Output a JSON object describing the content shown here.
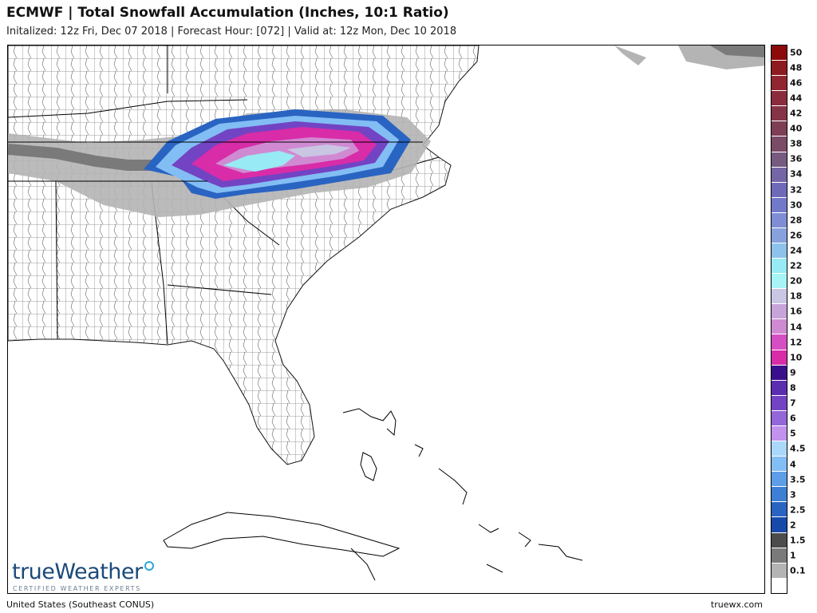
{
  "header": {
    "title": "ECMWF | Total Snowfall Accumulation (Inches, 10:1 Ratio)",
    "subtitle": "Initalized: 12z Fri, Dec 07 2018  |  Forecast Hour: [072]  |  Valid at: 12z Mon, Dec 10 2018"
  },
  "footer": {
    "region": "United States (Southeast CONUS)",
    "site": "truewx.com"
  },
  "logo": {
    "word1": "true",
    "word2": "Weather",
    "tagline": "CERTIFIED WEATHER EXPERTS"
  },
  "legend": {
    "levels": [
      {
        "label": "50",
        "color": "#8b0a0a"
      },
      {
        "label": "48",
        "color": "#8e1b1f"
      },
      {
        "label": "46",
        "color": "#922630"
      },
      {
        "label": "44",
        "color": "#8a2c3c"
      },
      {
        "label": "42",
        "color": "#853447"
      },
      {
        "label": "40",
        "color": "#7e3e55"
      },
      {
        "label": "38",
        "color": "#7a4a66"
      },
      {
        "label": "36",
        "color": "#775a80"
      },
      {
        "label": "34",
        "color": "#7466a6"
      },
      {
        "label": "32",
        "color": "#6f6ab8"
      },
      {
        "label": "30",
        "color": "#7379c9"
      },
      {
        "label": "28",
        "color": "#7e8dd4"
      },
      {
        "label": "26",
        "color": "#86a1dc"
      },
      {
        "label": "24",
        "color": "#8cc2ec"
      },
      {
        "label": "22",
        "color": "#98eaf4"
      },
      {
        "label": "20",
        "color": "#a6f4f6"
      },
      {
        "label": "18",
        "color": "#c8c6e2"
      },
      {
        "label": "16",
        "color": "#c6a4da"
      },
      {
        "label": "14",
        "color": "#d08ad2"
      },
      {
        "label": "12",
        "color": "#d64ec4"
      },
      {
        "label": "10",
        "color": "#d82ca8"
      },
      {
        "label": "9",
        "color": "#3a0f8c"
      },
      {
        "label": "8",
        "color": "#5b2eb0"
      },
      {
        "label": "7",
        "color": "#7244c4"
      },
      {
        "label": "6",
        "color": "#9366da"
      },
      {
        "label": "5",
        "color": "#c292ee"
      },
      {
        "label": "4.5",
        "color": "#a9d8fb"
      },
      {
        "label": "4",
        "color": "#82bdf4"
      },
      {
        "label": "3.5",
        "color": "#5e9ee6"
      },
      {
        "label": "3",
        "color": "#3d7fd4"
      },
      {
        "label": "2.5",
        "color": "#2a64c2"
      },
      {
        "label": "2",
        "color": "#174aa8"
      },
      {
        "label": "1.5",
        "color": "#4c4c4c"
      },
      {
        "label": "1",
        "color": "#7a7a7a"
      },
      {
        "label": "0.1",
        "color": "#b4b4b4"
      },
      {
        "label": "",
        "color": "#ffffff"
      }
    ]
  }
}
